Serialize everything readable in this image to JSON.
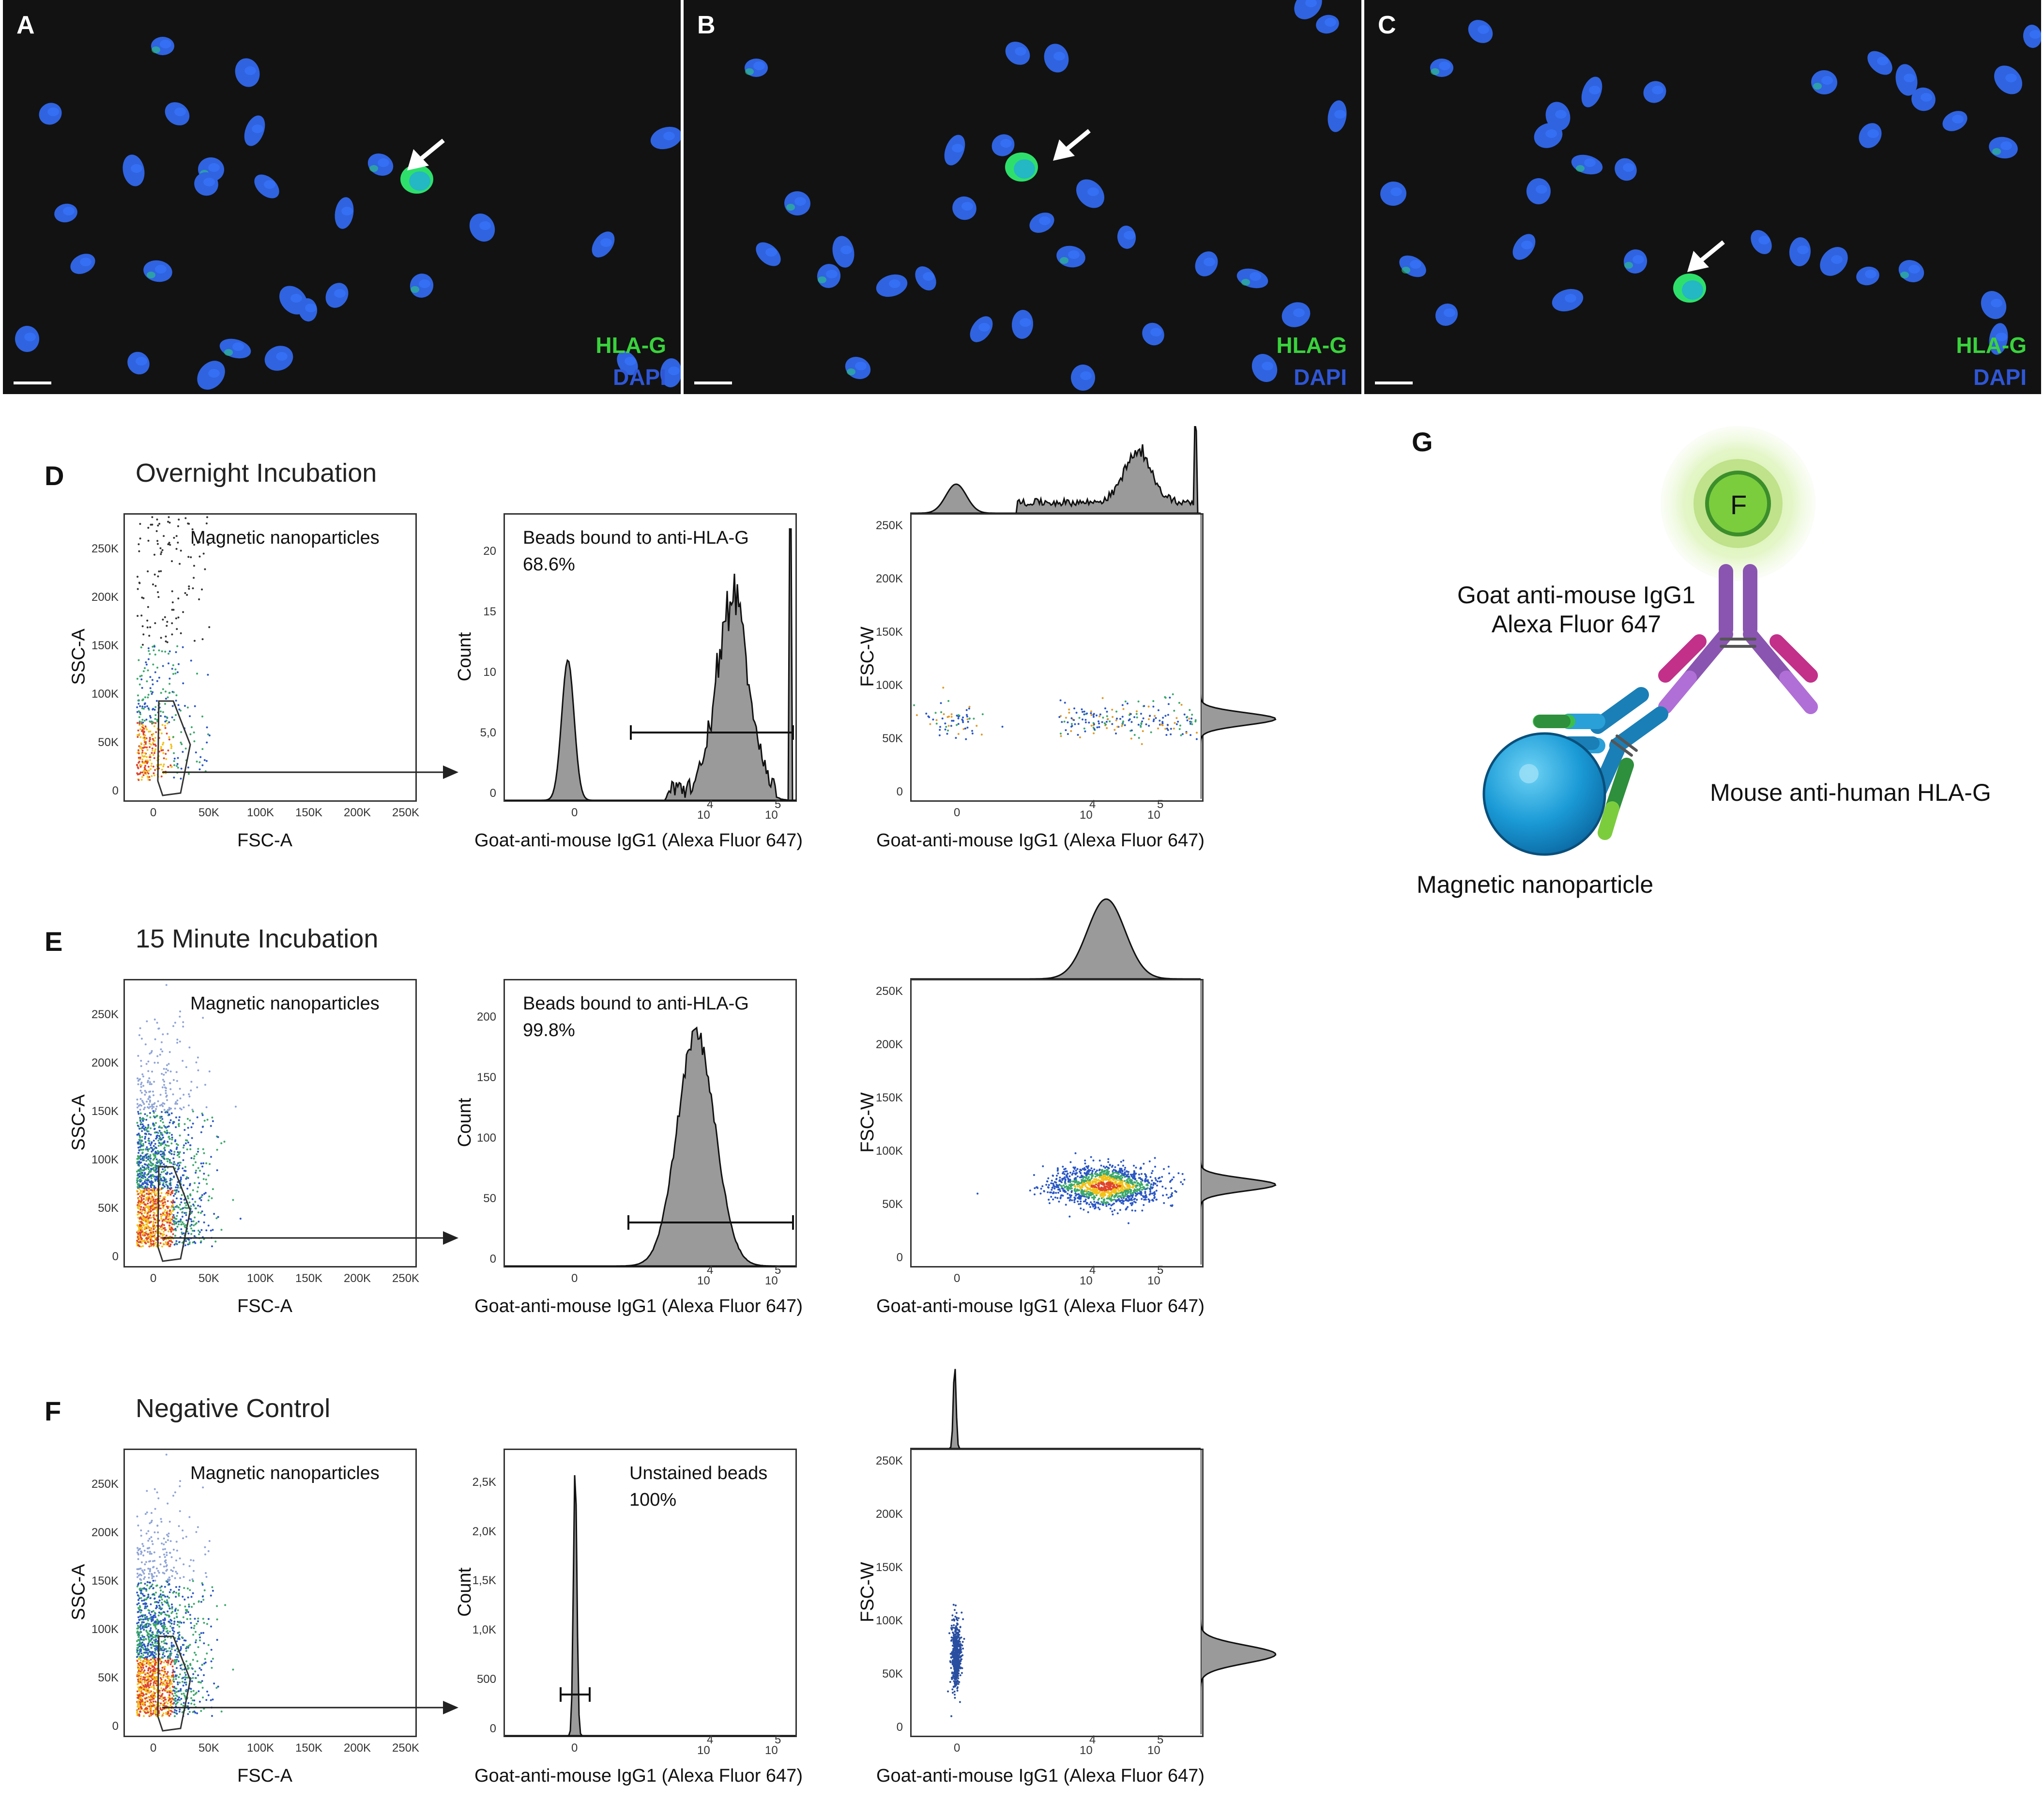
{
  "microscopy": [
    {
      "label": "A",
      "marker1": "HLA-G",
      "marker2": "DAPI"
    },
    {
      "label": "B",
      "marker1": "HLA-G",
      "marker2": "DAPI"
    },
    {
      "label": "C",
      "marker1": "HLA-G",
      "marker2": "DAPI"
    }
  ],
  "colors": {
    "hla_g": "#39d23c",
    "dapi": "#2f56d6",
    "histogram_fill": "#9a9a9a"
  },
  "rows": [
    {
      "label": "D",
      "title": "Overnight Incubation",
      "gate_label": "Magnetic nanoparticles",
      "hist_gate": "Beads bound to anti-HLA-G",
      "hist_pct": "68.6%",
      "hist_yticks": [
        "0",
        "5,0",
        "10",
        "15",
        "20"
      ]
    },
    {
      "label": "E",
      "title": "15 Minute Incubation",
      "gate_label": "Magnetic nanoparticles",
      "hist_gate": "Beads bound to anti-HLA-G",
      "hist_pct": "99.8%",
      "hist_yticks": [
        "0",
        "50",
        "100",
        "150",
        "200"
      ]
    },
    {
      "label": "F",
      "title": "Negative Control",
      "gate_label": "Magnetic nanoparticles",
      "hist_gate": "Unstained beads",
      "hist_pct": "100%",
      "hist_yticks": [
        "0",
        "500",
        "1,0K",
        "1,5K",
        "2,0K",
        "2,5K"
      ]
    }
  ],
  "axes": {
    "scatter_x": "FSC-A",
    "scatter_y": "SSC-A",
    "hist_x": "Goat-anti-mouse IgG1 (Alexa Fluor 647)",
    "hist_y": "Count",
    "dot_y": "FSC-W",
    "scatter_yticks": [
      "0",
      "50K",
      "100K",
      "150K",
      "200K",
      "250K"
    ],
    "scatter_xticks": [
      "0",
      "50K",
      "100K",
      "150K",
      "200K",
      "250K"
    ],
    "log_xticks": [
      "0",
      "10",
      "4",
      "10",
      "5"
    ],
    "dot_yticks": [
      "0",
      "50K",
      "100K",
      "150K",
      "200K",
      "250K"
    ]
  },
  "diagram": {
    "label": "G",
    "fluor": "F",
    "secondary_line1": "Goat anti-mouse IgG1",
    "secondary_line2": "Alexa Fluor 647",
    "primary": "Mouse anti-human HLA-G",
    "bead": "Magnetic nanoparticle"
  },
  "chart_data": [
    {
      "type": "scatter",
      "panel": "D-1",
      "title": "Overnight Incubation",
      "xlabel": "FSC-A",
      "ylabel": "SSC-A",
      "xlim": [
        0,
        250000
      ],
      "ylim": [
        0,
        250000
      ],
      "gate": "Magnetic nanoparticles"
    },
    {
      "type": "bar",
      "panel": "D-2",
      "xlabel": "Goat-anti-mouse IgG1 (Alexa Fluor 647)",
      "ylabel": "Count",
      "ylim": [
        0,
        23
      ],
      "gate": "Beads bound to anti-HLA-G",
      "gate_percent": 68.6
    },
    {
      "type": "scatter",
      "panel": "D-3",
      "xlabel": "Goat-anti-mouse IgG1 (Alexa Fluor 647)",
      "ylabel": "FSC-W",
      "ylim": [
        0,
        250000
      ]
    },
    {
      "type": "scatter",
      "panel": "E-1",
      "title": "15 Minute Incubation",
      "xlabel": "FSC-A",
      "ylabel": "SSC-A",
      "xlim": [
        0,
        250000
      ],
      "ylim": [
        0,
        250000
      ],
      "gate": "Magnetic nanoparticles"
    },
    {
      "type": "bar",
      "panel": "E-2",
      "xlabel": "Goat-anti-mouse IgG1 (Alexa Fluor 647)",
      "ylabel": "Count",
      "ylim": [
        0,
        210
      ],
      "gate": "Beads bound to anti-HLA-G",
      "gate_percent": 99.8
    },
    {
      "type": "scatter",
      "panel": "E-3",
      "xlabel": "Goat-anti-mouse IgG1 (Alexa Fluor 647)",
      "ylabel": "FSC-W",
      "ylim": [
        0,
        250000
      ]
    },
    {
      "type": "scatter",
      "panel": "F-1",
      "title": "Negative Control",
      "xlabel": "FSC-A",
      "ylabel": "SSC-A",
      "xlim": [
        0,
        250000
      ],
      "ylim": [
        0,
        250000
      ],
      "gate": "Magnetic nanoparticles"
    },
    {
      "type": "bar",
      "panel": "F-2",
      "xlabel": "Goat-anti-mouse IgG1 (Alexa Fluor 647)",
      "ylabel": "Count",
      "ylim": [
        0,
        2800
      ],
      "gate": "Unstained beads",
      "gate_percent": 100
    },
    {
      "type": "scatter",
      "panel": "F-3",
      "xlabel": "Goat-anti-mouse IgG1 (Alexa Fluor 647)",
      "ylabel": "FSC-W",
      "ylim": [
        0,
        250000
      ]
    }
  ]
}
